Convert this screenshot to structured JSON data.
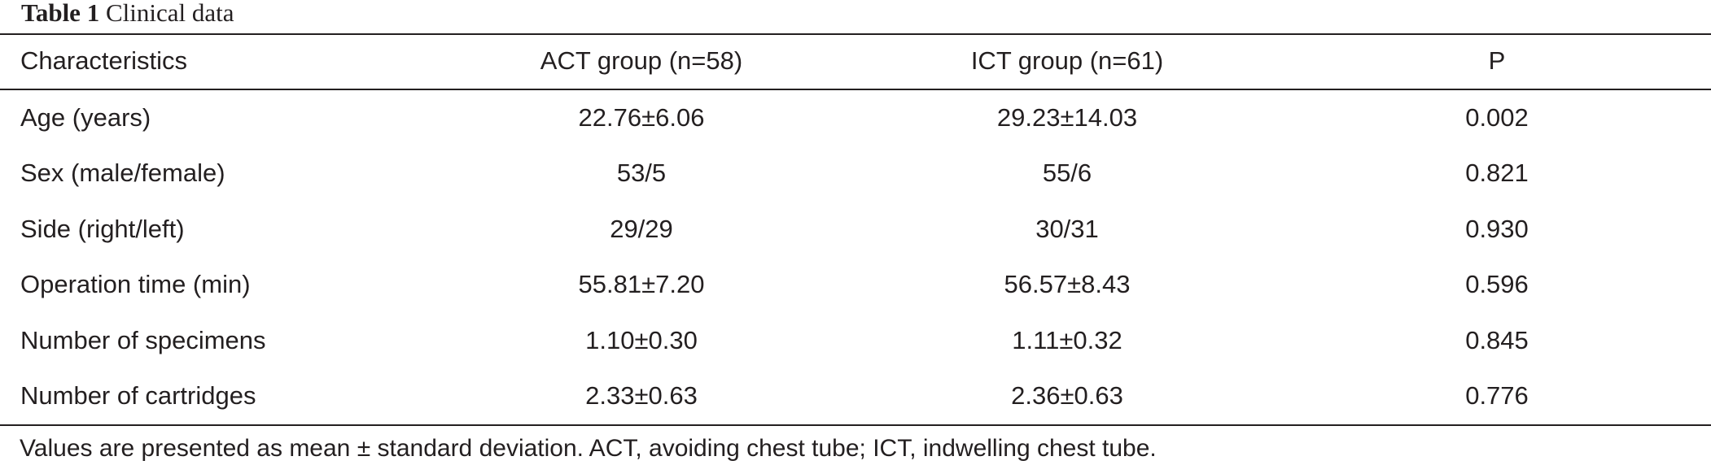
{
  "caption": {
    "label": "Table 1",
    "title": "Clinical data"
  },
  "table": {
    "headers": [
      "Characteristics",
      "ACT group (n=58)",
      "ICT group (n=61)",
      "P"
    ],
    "rows": [
      [
        "Age (years)",
        "22.76±6.06",
        "29.23±14.03",
        "0.002"
      ],
      [
        "Sex (male/female)",
        "53/5",
        "55/6",
        "0.821"
      ],
      [
        "Side (right/left)",
        "29/29",
        "30/31",
        "0.930"
      ],
      [
        "Operation time (min)",
        "55.81±7.20",
        "56.57±8.43",
        "0.596"
      ],
      [
        "Number of specimens",
        "1.10±0.30",
        "1.11±0.32",
        "0.845"
      ],
      [
        "Number of cartridges",
        "2.33±0.63",
        "2.36±0.63",
        "0.776"
      ]
    ]
  },
  "footnote": "Values are presented as mean ± standard deviation. ACT, avoiding chest tube; ICT, indwelling chest tube."
}
